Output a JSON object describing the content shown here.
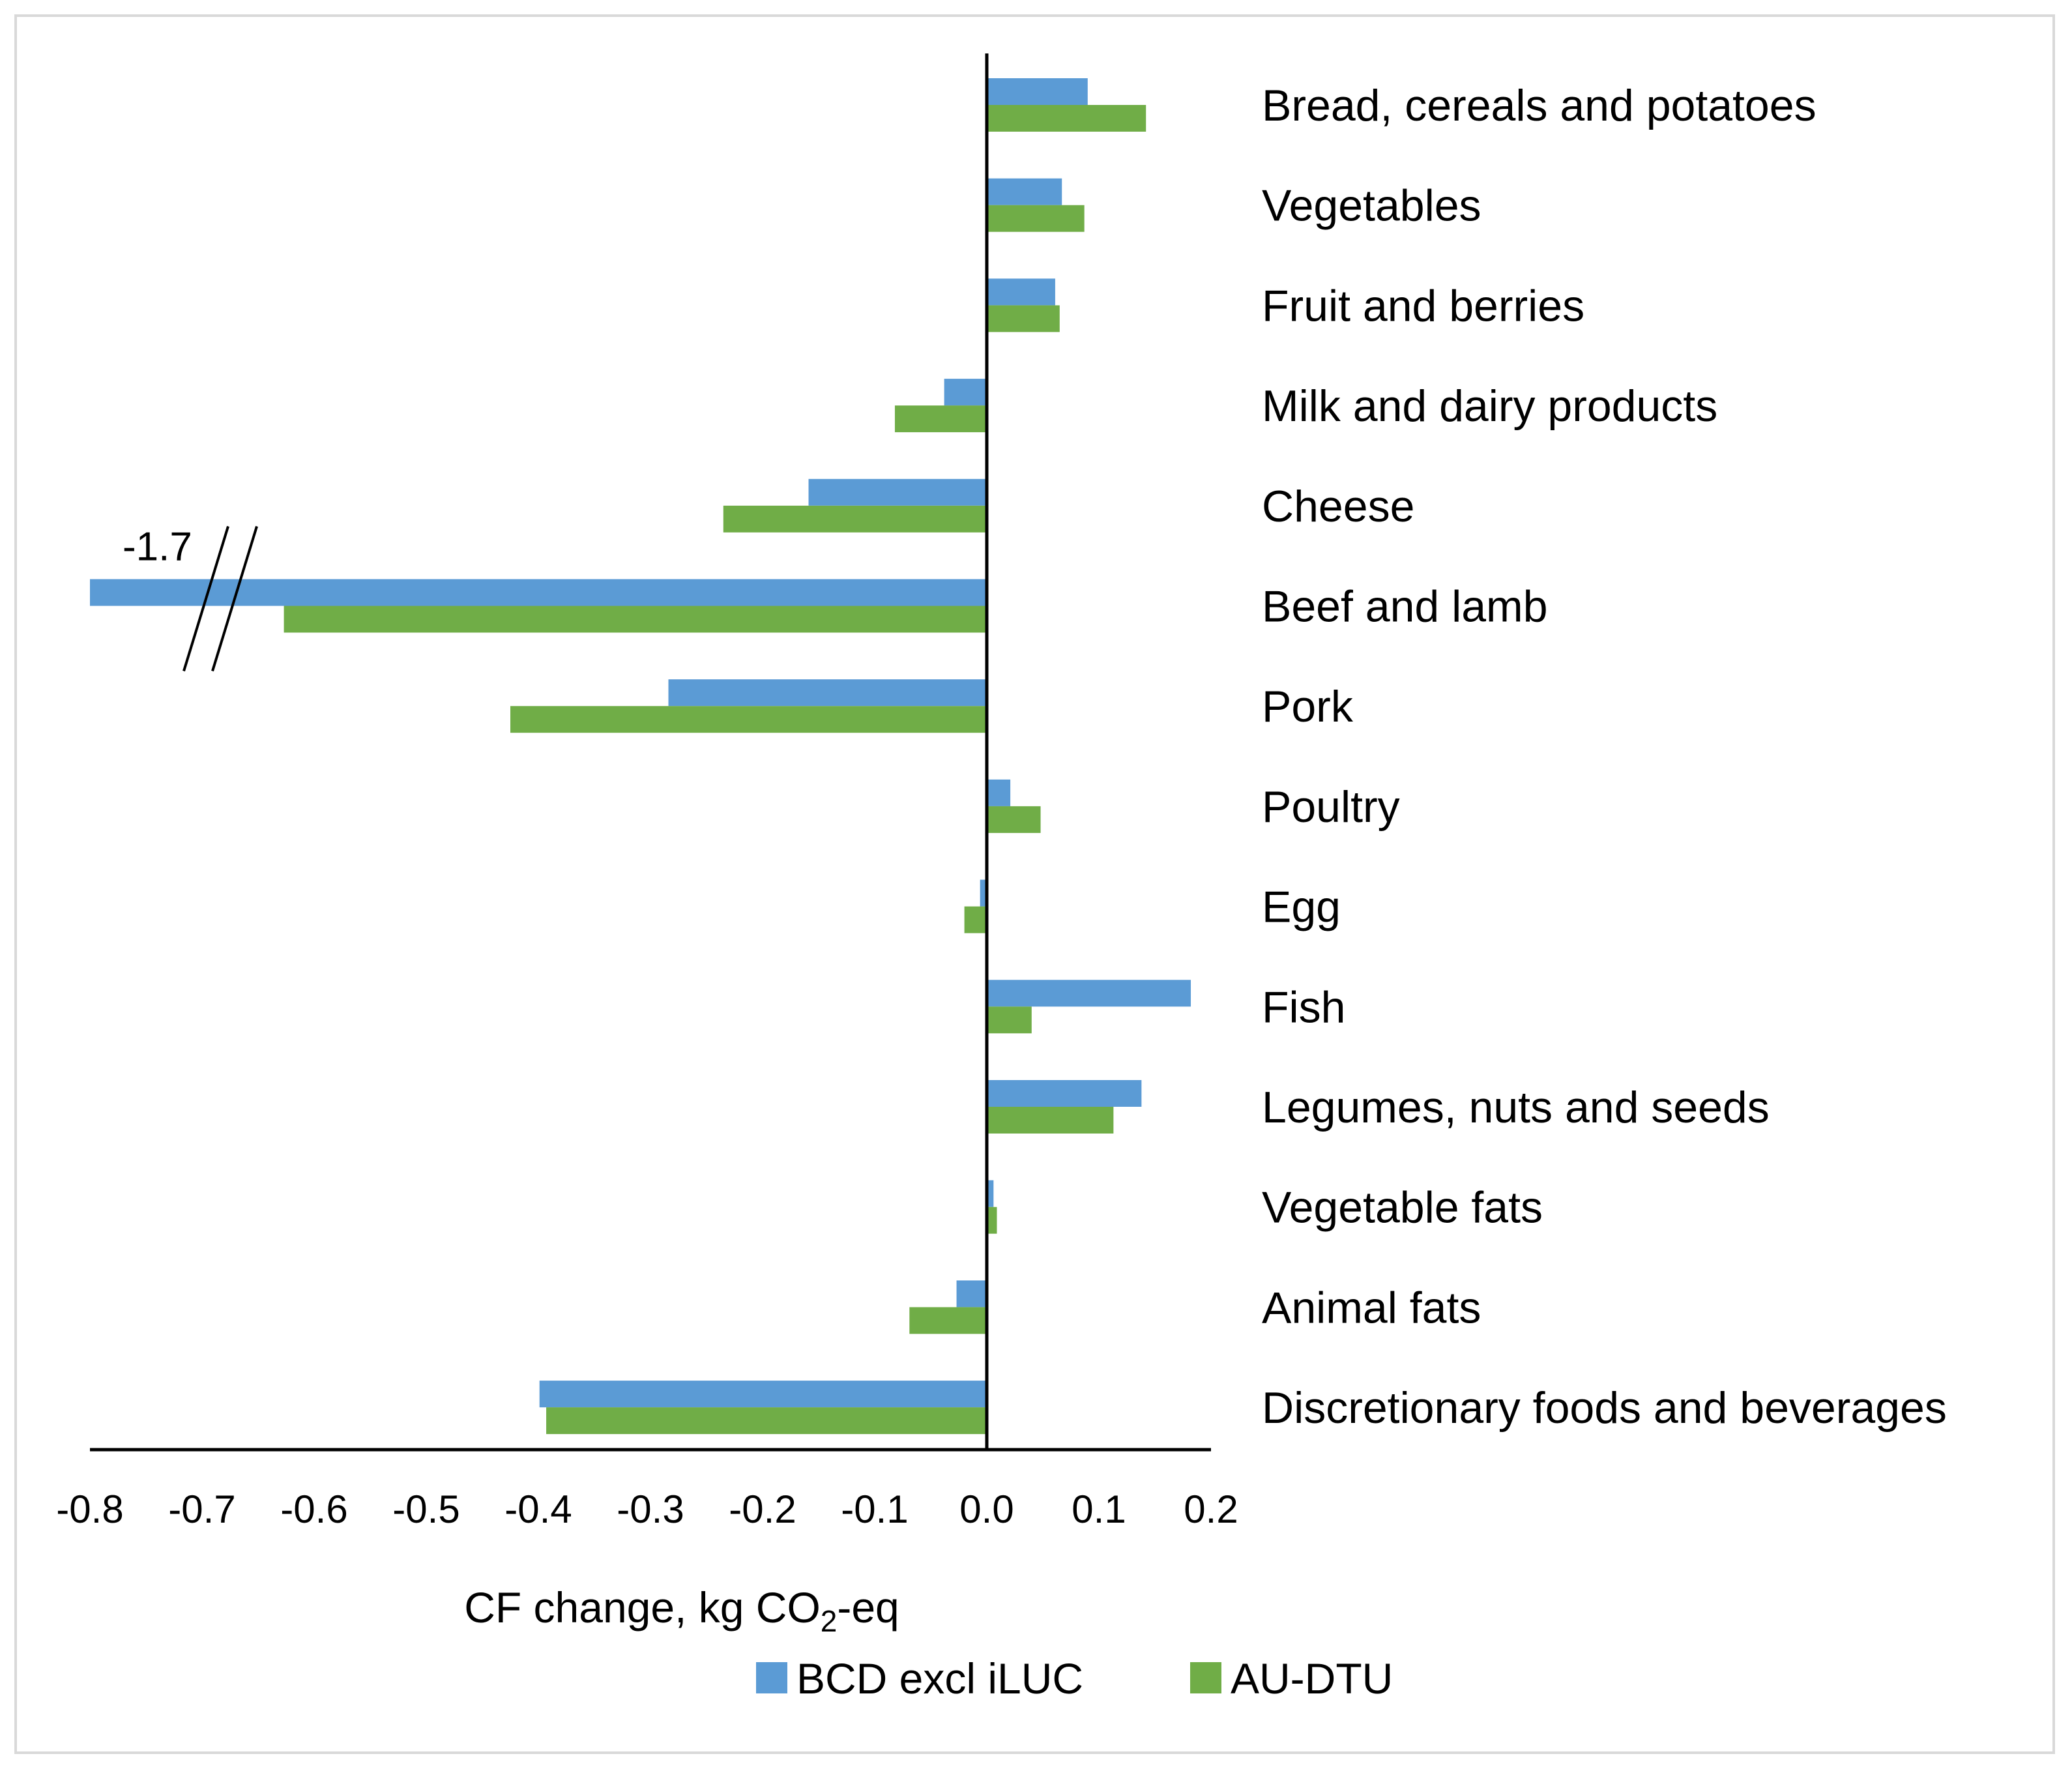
{
  "chart_data": {
    "type": "bar",
    "orientation": "horizontal",
    "title": "",
    "xlabel": "CF change, kg CO2-eq",
    "xlabel_parts": {
      "prefix": "CF change, kg CO",
      "subscript": "2",
      "suffix": "-eq"
    },
    "xlim": [
      -0.8,
      0.2
    ],
    "xticks": [
      "-0.8",
      "-0.7",
      "-0.6",
      "-0.5",
      "-0.4",
      "-0.3",
      "-0.2",
      "-0.1",
      "0.0",
      "0.1",
      "0.2"
    ],
    "categories": [
      "Bread, cereals and potatoes",
      "Vegetables",
      "Fruit and berries",
      "Milk and dairy products",
      "Cheese",
      "Beef and lamb",
      "Pork",
      "Poultry",
      "Egg",
      "Fish",
      "Legumes, nuts and seeds",
      "Vegetable fats",
      "Animal fats",
      "Discretionary foods and beverages"
    ],
    "series": [
      {
        "name": "BCD excl iLUC",
        "color": "#5b9bd5",
        "values": [
          0.09,
          0.067,
          0.061,
          -0.038,
          -0.159,
          -1.7,
          -0.284,
          0.021,
          -0.006,
          0.182,
          0.138,
          0.006,
          -0.027,
          -0.399
        ]
      },
      {
        "name": "AU-DTU",
        "color": "#70ad47",
        "values": [
          0.142,
          0.087,
          0.065,
          -0.082,
          -0.235,
          -0.627,
          -0.425,
          0.048,
          -0.02,
          0.04,
          0.113,
          0.009,
          -0.069,
          -0.393
        ]
      }
    ],
    "axis_break": {
      "series": "BCD excl iLUC",
      "category": "Beef and lamb",
      "label": "-1.7"
    },
    "legend": {
      "position": "bottom"
    }
  }
}
